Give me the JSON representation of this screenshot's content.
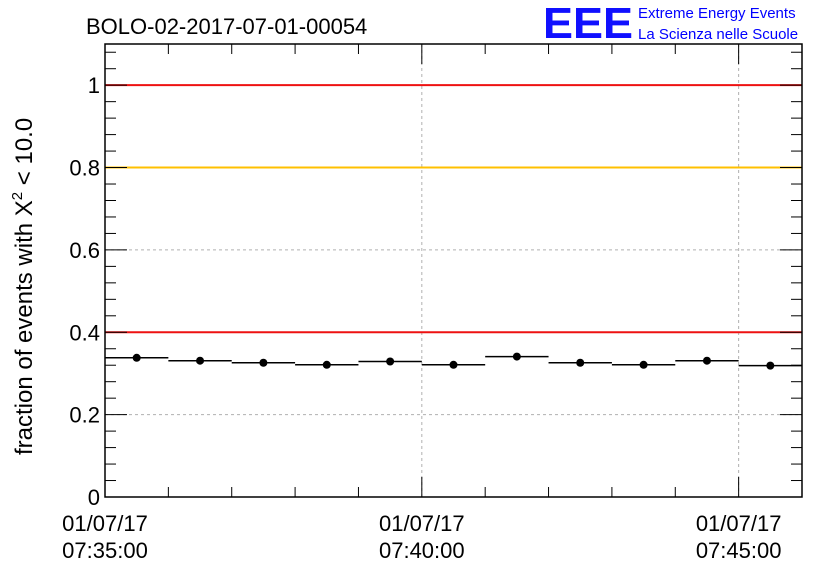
{
  "chart_data": {
    "type": "scatter",
    "title": "BOLO-02-2017-07-01-00054",
    "ylabel_prefix": "fraction of events with X",
    "ylabel_sup": "2",
    "ylabel_suffix": " < 10.0",
    "xlabel": "",
    "ylim": [
      0,
      1.1
    ],
    "yticks": [
      0,
      0.2,
      0.4,
      0.6,
      0.8,
      1
    ],
    "ytick_labels": [
      "0",
      "0.2",
      "0.4",
      "0.6",
      "0.8",
      "1"
    ],
    "xlim_minutes": [
      0,
      11
    ],
    "xticks_minutes": [
      0,
      5,
      10
    ],
    "xtick_labels": [
      {
        "date": "01/07/17",
        "time": "07:35:00"
      },
      {
        "date": "01/07/17",
        "time": "07:40:00"
      },
      {
        "date": "01/07/17",
        "time": "07:45:00"
      }
    ],
    "grid": true,
    "reference_lines": [
      {
        "y": 1.0,
        "color": "#ee1111"
      },
      {
        "y": 0.8,
        "color": "#ffc000"
      },
      {
        "y": 0.4,
        "color": "#ee1111"
      }
    ],
    "series": [
      {
        "name": "fraction",
        "color": "#000000",
        "bin_width_minutes": 1,
        "x_minutes": [
          0.5,
          1.5,
          2.5,
          3.5,
          4.5,
          5.5,
          6.5,
          7.5,
          8.5,
          9.5,
          10.5
        ],
        "values": [
          0.338,
          0.331,
          0.326,
          0.321,
          0.329,
          0.321,
          0.341,
          0.326,
          0.321,
          0.331,
          0.319
        ]
      }
    ]
  },
  "logo": {
    "mark": "EEE",
    "line1": "Extreme Energy Events",
    "line2": "La Scienza nelle Scuole"
  }
}
